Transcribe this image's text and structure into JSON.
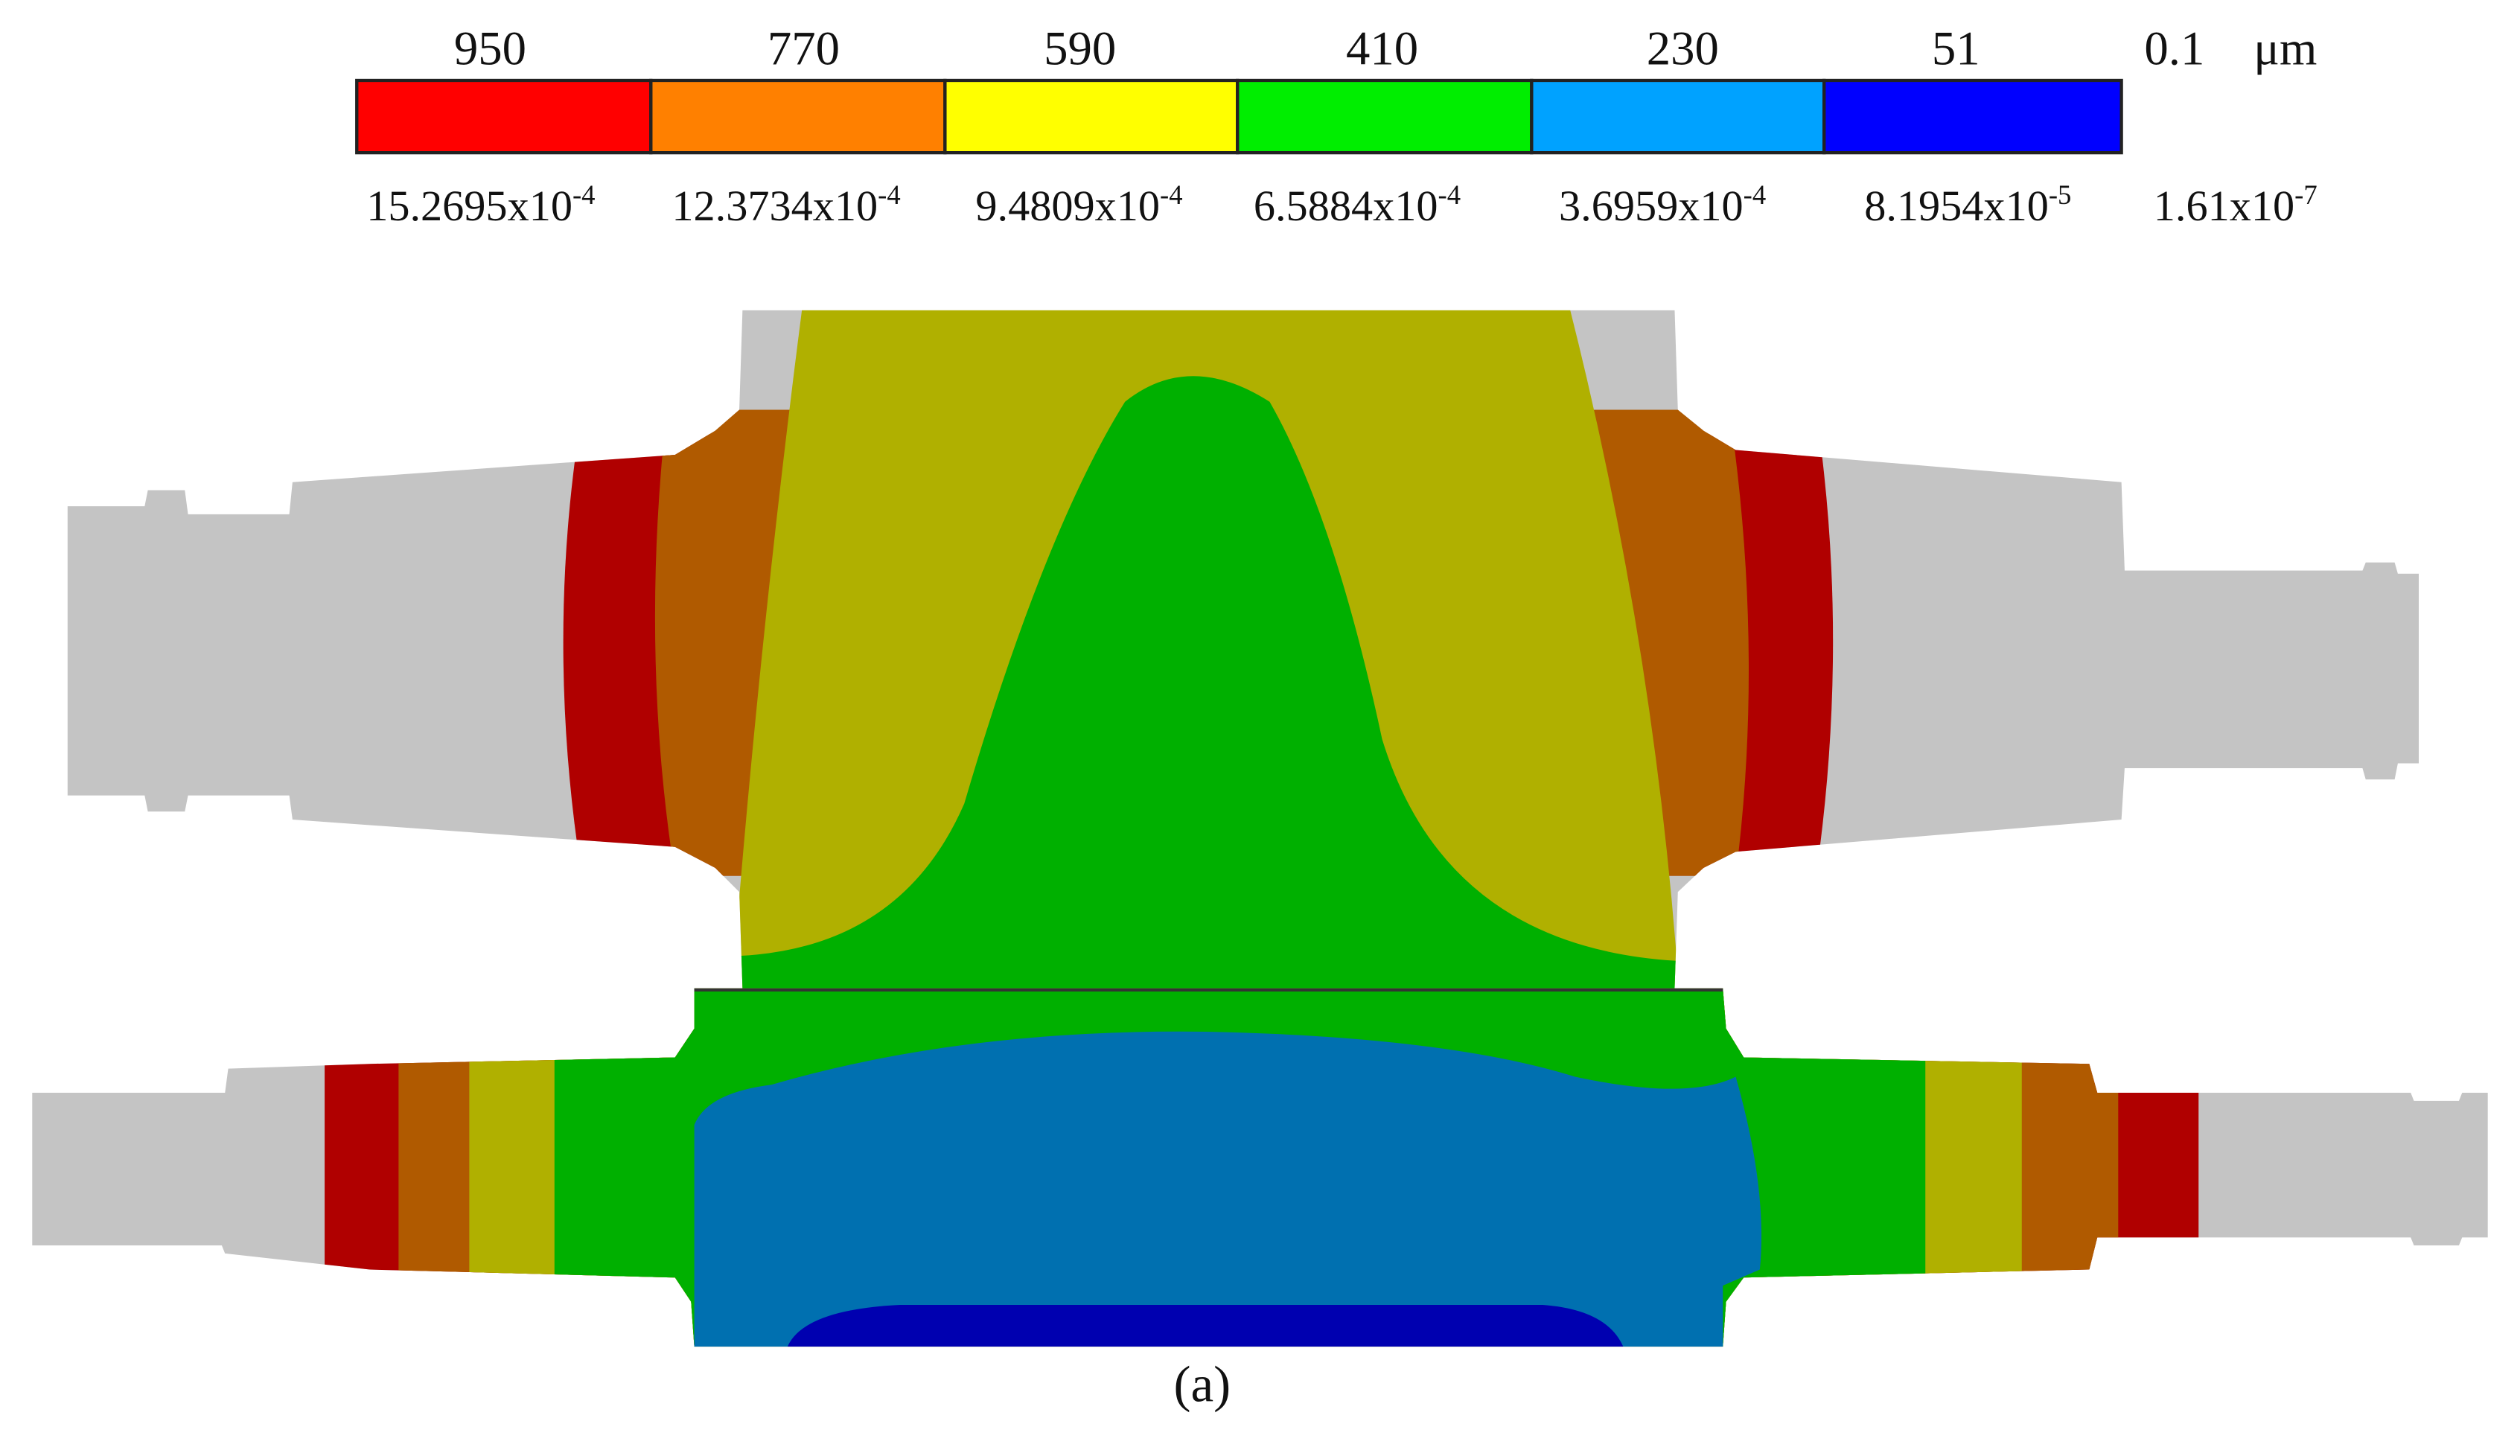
{
  "legend": {
    "upper": [
      "950",
      "770",
      "590",
      "410",
      "230",
      "51",
      "0.1"
    ],
    "unit": "μm",
    "lower": [
      {
        "mantissa": "15.2695x10",
        "exponent": "-4"
      },
      {
        "mantissa": "12.3734x10",
        "exponent": "-4"
      },
      {
        "mantissa": "9.4809x10",
        "exponent": "-4"
      },
      {
        "mantissa": "6.5884x10",
        "exponent": "-4"
      },
      {
        "mantissa": "3.6959x10",
        "exponent": "-4"
      },
      {
        "mantissa": "8.1954x10",
        "exponent": "-5"
      },
      {
        "mantissa": "1.61x10",
        "exponent": "-7"
      }
    ]
  },
  "caption": "(a)"
}
